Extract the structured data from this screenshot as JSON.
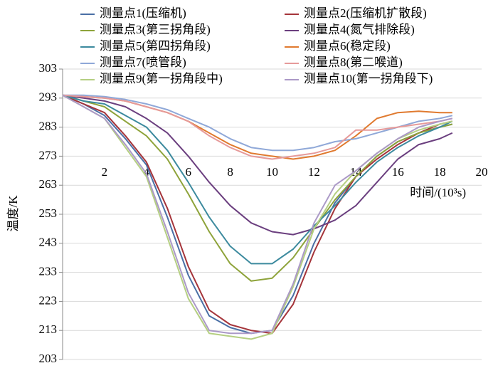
{
  "chart_data": {
    "type": "line",
    "x_label": "时间/(10³s)",
    "y_label": "温度/K",
    "x": [
      0,
      1,
      2,
      3,
      4,
      5,
      6,
      7,
      8,
      9,
      10,
      11,
      12,
      13,
      14,
      15,
      16,
      17,
      18,
      18.6
    ],
    "series": [
      {
        "name": "测量点1(压缩机)",
        "color": "#4a6fa5",
        "values": [
          294,
          291,
          287,
          279,
          270,
          252,
          232,
          218,
          214,
          212,
          213,
          225,
          243,
          257,
          266,
          273,
          278,
          281,
          283,
          284
        ]
      },
      {
        "name": "测量点2(压缩机扩散段)",
        "color": "#a5343a",
        "values": [
          294,
          291,
          288,
          280,
          271,
          255,
          235,
          220,
          215,
          213,
          212,
          222,
          240,
          255,
          266,
          272,
          277,
          281,
          284,
          285
        ]
      },
      {
        "name": "测量点3(第三拐角段)",
        "color": "#8ea33a",
        "values": [
          294,
          292,
          290,
          285,
          280,
          272,
          260,
          247,
          236,
          230,
          231,
          238,
          248,
          258,
          266,
          273,
          278,
          281,
          283,
          284
        ]
      },
      {
        "name": "测量点4(氮气排除段)",
        "color": "#6b3f7f",
        "values": [
          294,
          293,
          292,
          290,
          286,
          281,
          273,
          264,
          256,
          250,
          247,
          246,
          248,
          251,
          256,
          264,
          272,
          277,
          279,
          281
        ]
      },
      {
        "name": "测量点5(第四拐角段)",
        "color": "#3c8a9e",
        "values": [
          294,
          292,
          291,
          287,
          283,
          275,
          264,
          252,
          242,
          236,
          236,
          241,
          249,
          256,
          264,
          271,
          276,
          280,
          283,
          285
        ]
      },
      {
        "name": "测量点6(稳定段)",
        "color": "#e07a2f",
        "values": [
          294,
          293.5,
          293,
          292,
          290,
          288,
          285,
          281,
          277,
          274,
          273,
          272,
          273,
          275,
          280,
          286,
          288,
          288.5,
          288,
          288
        ]
      },
      {
        "name": "测量点7(喷管段)",
        "color": "#8fa8d8",
        "values": [
          294,
          294,
          293.5,
          292.5,
          291,
          289,
          286,
          283,
          279,
          276,
          275,
          275,
          276,
          278,
          279,
          281,
          283,
          285,
          286,
          287
        ]
      },
      {
        "name": "测量点8(第二喉道)",
        "color": "#e69a9a",
        "values": [
          294,
          293.5,
          293,
          292,
          290,
          288,
          285,
          280,
          276,
          273,
          272,
          273,
          274,
          276,
          282,
          282,
          283,
          284,
          285,
          286
        ]
      },
      {
        "name": "测量点9(第一拐角段中)",
        "color": "#b5cf82",
        "values": [
          294,
          290,
          286,
          276,
          266,
          245,
          224,
          212,
          211,
          210,
          212,
          228,
          248,
          260,
          268,
          274,
          279,
          282,
          284,
          285
        ]
      },
      {
        "name": "测量点10(第一拐角段下)",
        "color": "#ab99c7",
        "values": [
          294,
          290,
          286,
          277,
          267,
          247,
          226,
          213,
          212,
          212,
          213,
          229,
          250,
          263,
          268,
          274,
          279,
          283,
          285,
          286
        ]
      }
    ],
    "xlim": [
      0,
      20
    ],
    "xticks": [
      2,
      4,
      6,
      8,
      10,
      12,
      14,
      16,
      18,
      20
    ],
    "ylim": [
      203,
      303
    ],
    "yticks": [
      203,
      213,
      223,
      233,
      243,
      253,
      263,
      273,
      283,
      293,
      303
    ],
    "grid": true
  }
}
